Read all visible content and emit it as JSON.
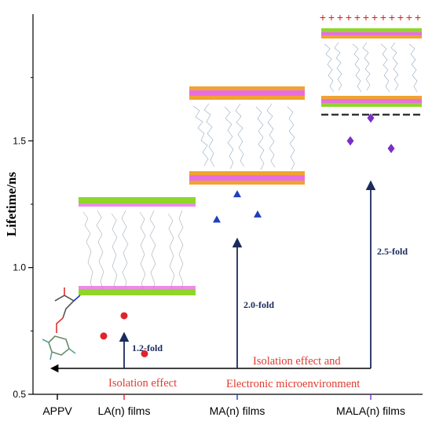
{
  "chart_data": {
    "type": "scatter",
    "ylabel": "Lifetime/ns",
    "xlabel": "",
    "ylim": [
      0.5,
      2.0
    ],
    "yticks": [
      "0.5",
      "1.0",
      "1.5"
    ],
    "categories": [
      "APPV",
      "LA(n)  films",
      "MA(n) films",
      "MALA(n) films"
    ],
    "series": [
      {
        "category": "LA(n)  films",
        "marker": "circle",
        "color": "#e0242a",
        "values": [
          0.73,
          0.81,
          0.66
        ]
      },
      {
        "category": "MA(n) films",
        "marker": "triangle",
        "color": "#1f3fbf",
        "values": [
          1.19,
          1.29,
          1.21
        ]
      },
      {
        "category": "MALA(n) films",
        "marker": "diamond",
        "color": "#7b2fc9",
        "values": [
          1.5,
          1.59,
          1.47
        ]
      }
    ],
    "annotations": {
      "folds": [
        "1.2-fold",
        "2.0-fold",
        "2.5-fold"
      ],
      "effect_line1": "Isolation effect",
      "effect_line2a": "Isolation effect and",
      "effect_line2b": "Electronic microenvironment"
    },
    "colors": {
      "axis": "#000000",
      "arrow": "#1b2b5c",
      "effect_text": "#e03a2e",
      "plus_marks": "#d11f1f",
      "layer_green": "#8fd62a",
      "layer_pink": "#e86ee0",
      "layer_orange": "#f0a430"
    }
  }
}
